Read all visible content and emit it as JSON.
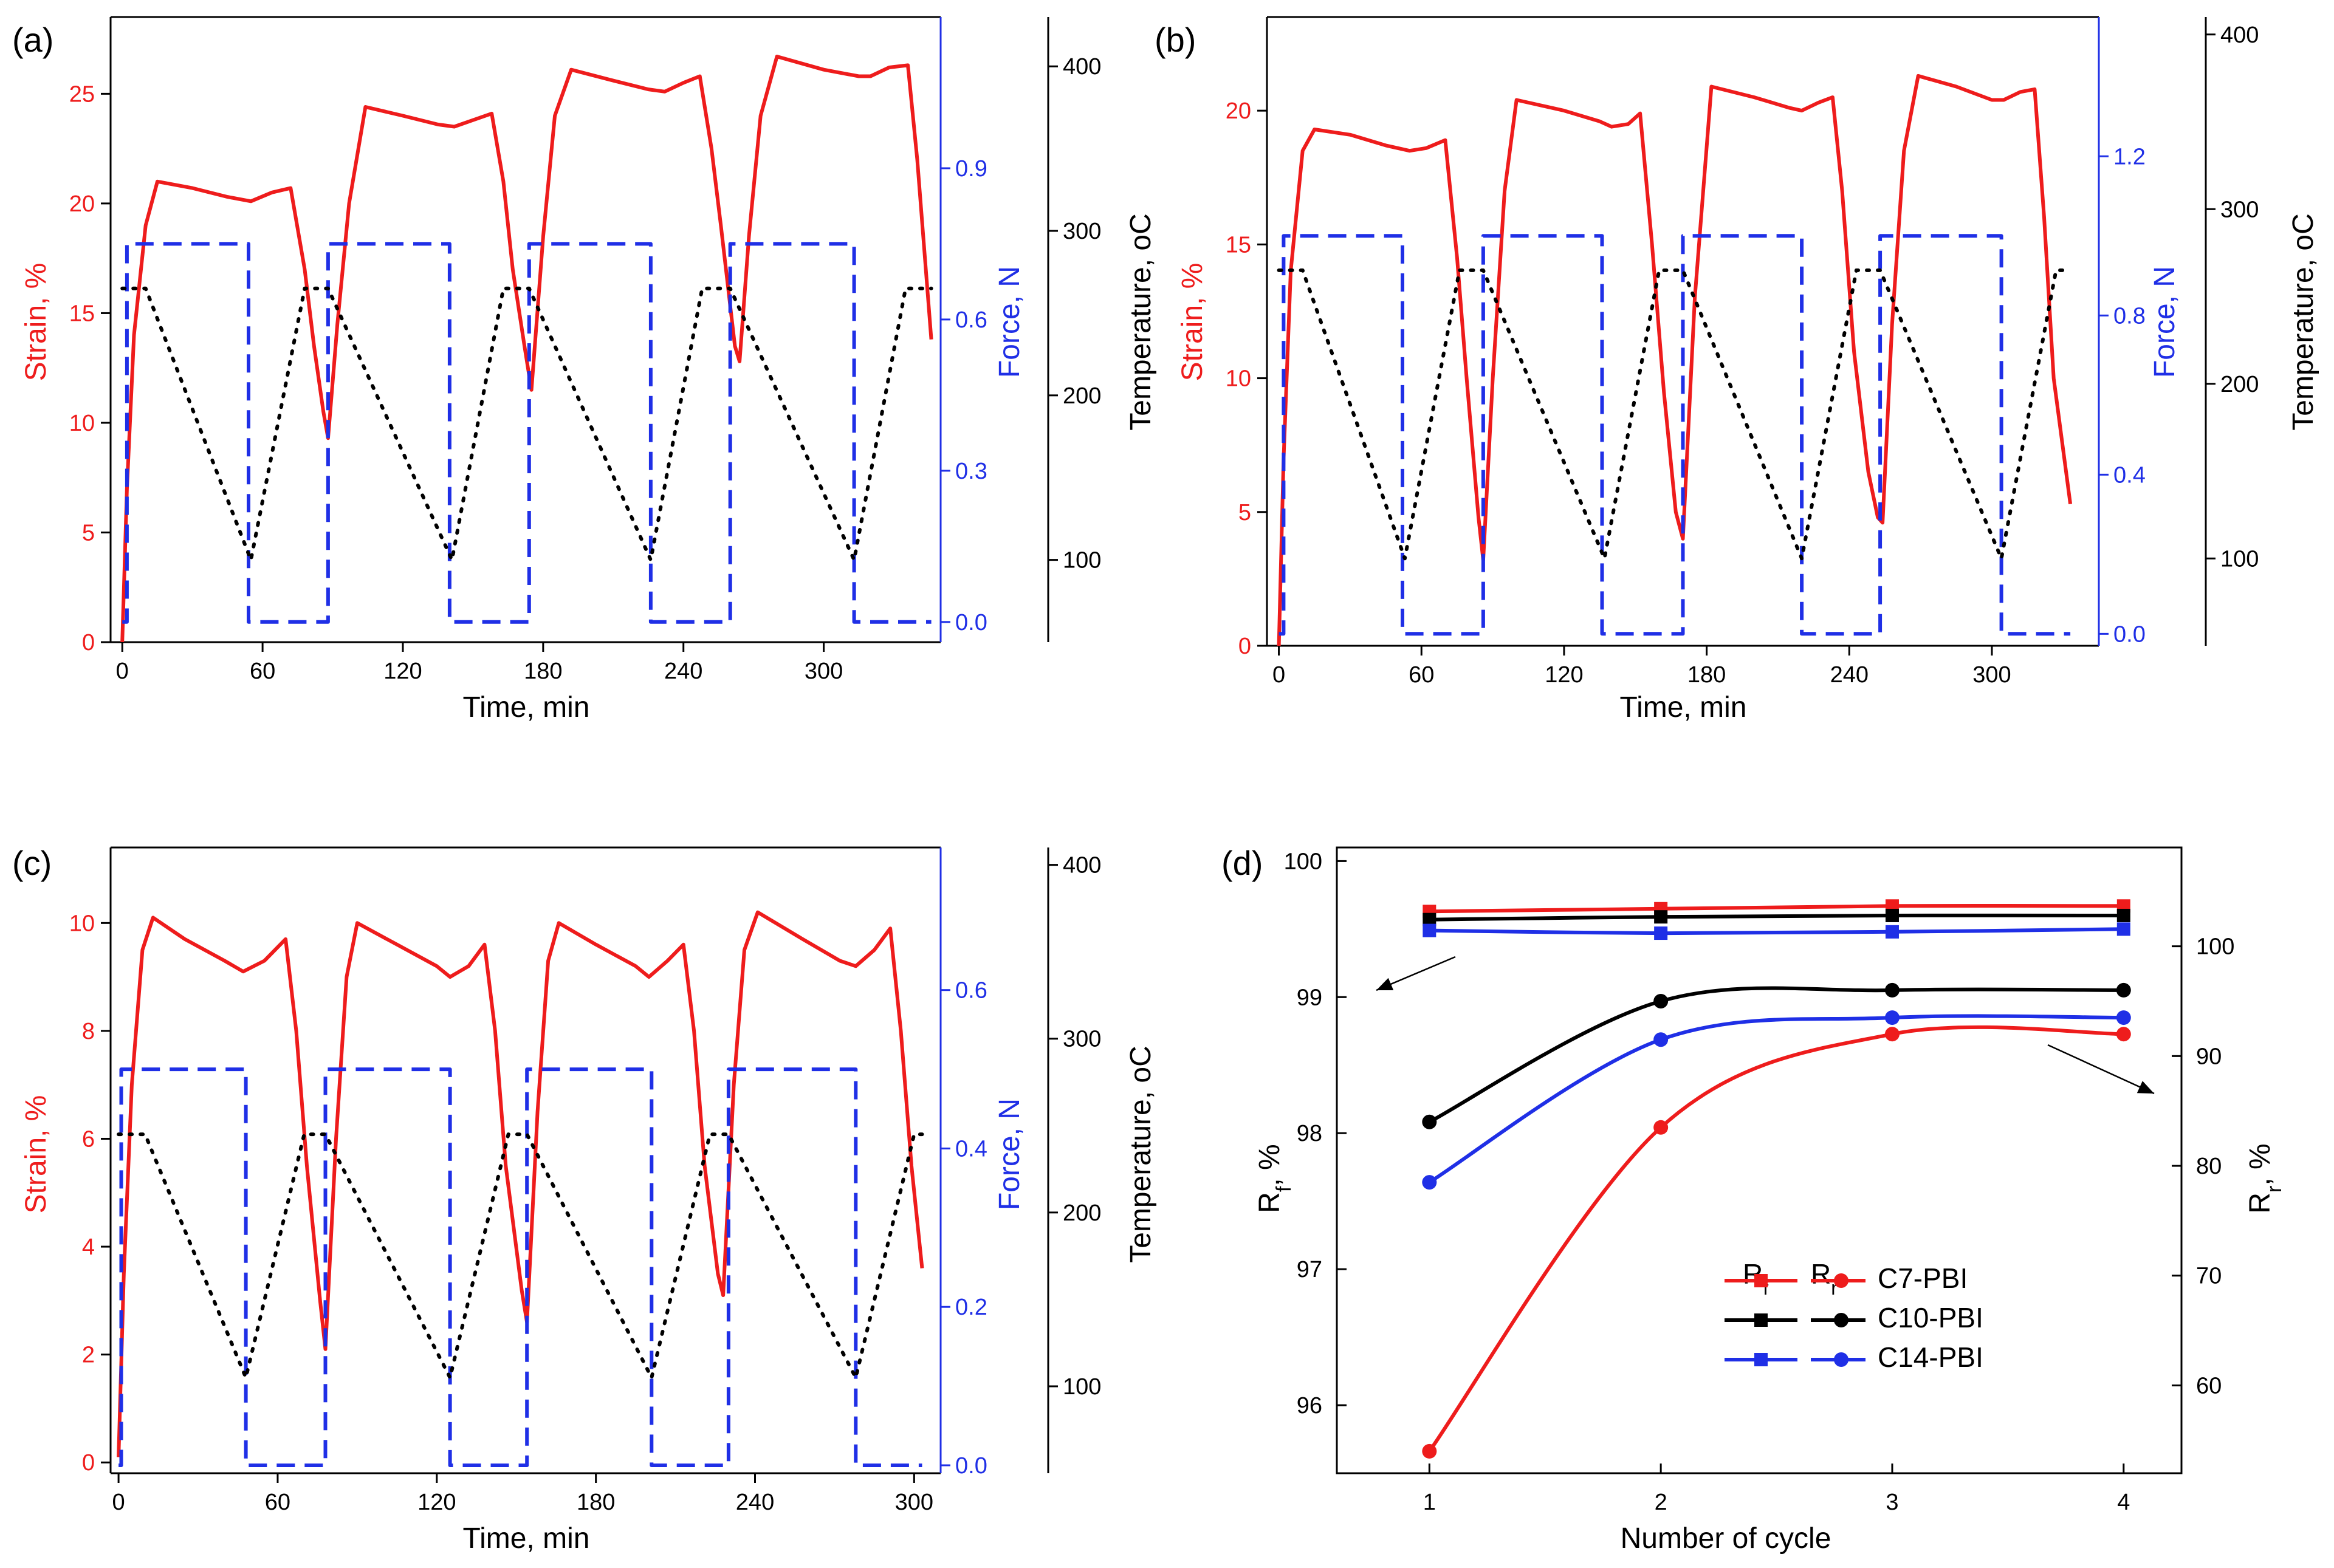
{
  "colors": {
    "strain": "#ee1c1c",
    "force": "#1f2fe6",
    "temperature": "#000000",
    "c7": "#ee1c1c",
    "c10": "#000000",
    "c14": "#1f2fe6"
  },
  "chart_data": [
    {
      "panel": "(a)",
      "type": "line",
      "xlabel": "Time, min",
      "xlim": [
        -5,
        350
      ],
      "xticks": [
        0,
        60,
        120,
        180,
        240,
        300
      ],
      "y_left": {
        "label": "Strain, %",
        "lim": [
          0,
          28.5
        ],
        "ticks": [
          0,
          5,
          10,
          15,
          20,
          25
        ]
      },
      "y_right1": {
        "label": "Force, N",
        "lim": [
          -0.04,
          1.2
        ],
        "ticks": [
          "0.0",
          "0.3",
          "0.6",
          "0.9"
        ]
      },
      "y_right2": {
        "label": "Temperature, oC",
        "lim": [
          50,
          430
        ],
        "ticks": [
          100,
          200,
          300,
          400
        ]
      },
      "series": [
        {
          "name": "Strain",
          "axis": "left",
          "style": "solid",
          "x": [
            0,
            2,
            5,
            10,
            15,
            30,
            45,
            55,
            64,
            72,
            78,
            82,
            86,
            88,
            92,
            97,
            104,
            120,
            135,
            142,
            150,
            158,
            163,
            167,
            172,
            175,
            180,
            185,
            192,
            210,
            225,
            232,
            240,
            247,
            252,
            256,
            262,
            264,
            268,
            273,
            280,
            300,
            315,
            320,
            328,
            336,
            340,
            346
          ],
          "values": [
            0,
            7,
            14,
            19,
            21,
            20.7,
            20.3,
            20.1,
            20.5,
            20.7,
            17,
            13.5,
            10.5,
            9.3,
            14.5,
            20,
            24.4,
            24,
            23.6,
            23.5,
            23.8,
            24.1,
            21,
            17,
            13.5,
            11.5,
            18.5,
            24,
            26.1,
            25.6,
            25.2,
            25.1,
            25.5,
            25.8,
            22.5,
            19,
            13.5,
            12.8,
            18.5,
            24,
            26.7,
            26.1,
            25.8,
            25.8,
            26.2,
            26.3,
            22,
            13.8
          ]
        },
        {
          "name": "Force",
          "axis": "right1",
          "style": "dash",
          "x": [
            0,
            2,
            2,
            54,
            54,
            88,
            88,
            140,
            140,
            174,
            174,
            226,
            226,
            260,
            260,
            313,
            313,
            346
          ],
          "values": [
            0,
            0,
            0.75,
            0.75,
            0,
            0,
            0.75,
            0.75,
            0,
            0,
            0.75,
            0.75,
            0,
            0,
            0.75,
            0.75,
            0,
            0
          ]
        },
        {
          "name": "Temperature",
          "axis": "right2",
          "style": "dot",
          "x": [
            0,
            10,
            55,
            78,
            88,
            141,
            163,
            174,
            226,
            248,
            260,
            313,
            335,
            346
          ],
          "values": [
            265,
            265,
            100,
            265,
            265,
            100,
            265,
            265,
            100,
            265,
            265,
            100,
            265,
            265
          ]
        }
      ]
    },
    {
      "panel": "(b)",
      "type": "line",
      "xlabel": "Time, min",
      "xlim": [
        -5,
        345
      ],
      "xticks": [
        0,
        60,
        120,
        180,
        240,
        300
      ],
      "y_left": {
        "label": "Strain, %",
        "lim": [
          0,
          23.5
        ],
        "ticks": [
          0,
          5,
          10,
          15,
          20
        ]
      },
      "y_right1": {
        "label": "Force, N",
        "lim": [
          -0.03,
          1.55
        ],
        "ticks": [
          "0.0",
          "0.4",
          "0.8",
          "1.2"
        ]
      },
      "y_right2": {
        "label": "Temperature, oC",
        "lim": [
          50,
          410
        ],
        "ticks": [
          100,
          200,
          300,
          400
        ]
      },
      "series": [
        {
          "name": "Strain",
          "axis": "left",
          "style": "solid",
          "x": [
            0,
            2,
            5,
            10,
            15,
            30,
            45,
            55,
            62,
            70,
            75,
            79,
            84,
            86,
            90,
            95,
            100,
            120,
            135,
            140,
            147,
            152,
            157,
            162,
            167,
            170,
            175,
            182,
            200,
            215,
            220,
            227,
            233,
            237,
            242,
            248,
            252,
            254,
            258,
            263,
            269,
            285,
            300,
            305,
            312,
            318,
            322,
            326,
            333
          ],
          "values": [
            0,
            7,
            14,
            18.5,
            19.3,
            19.1,
            18.7,
            18.5,
            18.6,
            18.9,
            14.5,
            10,
            4.8,
            3.2,
            10,
            17,
            20.4,
            20,
            19.6,
            19.4,
            19.5,
            19.9,
            15,
            9.5,
            5,
            4,
            13,
            20.9,
            20.5,
            20.1,
            20,
            20.3,
            20.5,
            17,
            11,
            6.5,
            4.8,
            4.6,
            12,
            18.5,
            21.3,
            20.9,
            20.4,
            20.4,
            20.7,
            20.8,
            16,
            10,
            5.3
          ]
        },
        {
          "name": "Force",
          "axis": "right1",
          "style": "dash",
          "x": [
            0,
            2,
            2,
            52,
            52,
            86,
            86,
            136,
            136,
            170,
            170,
            220,
            220,
            253,
            253,
            304,
            304,
            333
          ],
          "values": [
            0,
            0,
            1.0,
            1.0,
            0,
            0,
            1.0,
            1.0,
            0,
            0,
            1.0,
            1.0,
            0,
            0,
            1.0,
            1.0,
            0,
            0
          ]
        },
        {
          "name": "Temperature",
          "axis": "right2",
          "style": "dot",
          "x": [
            0,
            10,
            53,
            76,
            86,
            137,
            160,
            170,
            220,
            243,
            253,
            304,
            327,
            333
          ],
          "values": [
            265,
            265,
            100,
            265,
            265,
            100,
            265,
            265,
            100,
            265,
            265,
            100,
            265,
            265
          ]
        }
      ]
    },
    {
      "panel": "(c)",
      "type": "line",
      "xlabel": "Time, min",
      "xlim": [
        -3,
        310
      ],
      "xticks": [
        0,
        60,
        120,
        180,
        240,
        300
      ],
      "y_left": {
        "label": "Strain, %",
        "lim": [
          -0.2,
          11.4
        ],
        "ticks": [
          0,
          2,
          4,
          6,
          8,
          10
        ]
      },
      "y_right1": {
        "label": "Force, N",
        "lim": [
          -0.01,
          0.78
        ],
        "ticks": [
          "0.0",
          "0.2",
          "0.4",
          "0.6"
        ]
      },
      "y_right2": {
        "label": "Temperature, oC",
        "lim": [
          50,
          410
        ],
        "ticks": [
          100,
          200,
          300,
          400
        ]
      },
      "series": [
        {
          "name": "Strain",
          "axis": "left",
          "style": "solid",
          "x": [
            0,
            2,
            5,
            9,
            13,
            25,
            40,
            47,
            55,
            63,
            67,
            71,
            76,
            78,
            82,
            86,
            90,
            105,
            120,
            125,
            132,
            138,
            142,
            146,
            152,
            154,
            158,
            162,
            166,
            180,
            195,
            200,
            207,
            213,
            217,
            221,
            226,
            228,
            232,
            236,
            241,
            258,
            272,
            278,
            285,
            291,
            295,
            299,
            303
          ],
          "values": [
            0.1,
            3.5,
            7,
            9.5,
            10.1,
            9.7,
            9.3,
            9.1,
            9.3,
            9.7,
            8,
            5.5,
            3,
            2.1,
            6,
            9,
            10,
            9.6,
            9.2,
            9,
            9.2,
            9.6,
            8,
            5.5,
            3.2,
            2.6,
            6.5,
            9.3,
            10,
            9.6,
            9.2,
            9,
            9.3,
            9.6,
            8,
            5.5,
            3.5,
            3.1,
            7,
            9.5,
            10.2,
            9.7,
            9.3,
            9.2,
            9.5,
            9.9,
            8,
            5.5,
            3.6
          ]
        },
        {
          "name": "Force",
          "axis": "right1",
          "style": "dash",
          "x": [
            0,
            1,
            1,
            48,
            48,
            78,
            78,
            125,
            125,
            154,
            154,
            201,
            201,
            230,
            230,
            278,
            278,
            303
          ],
          "values": [
            0,
            0,
            0.5,
            0.5,
            0,
            0,
            0.5,
            0.5,
            0,
            0,
            0.5,
            0.5,
            0,
            0,
            0.5,
            0.5,
            0,
            0
          ]
        },
        {
          "name": "Temperature",
          "axis": "right2",
          "style": "dot",
          "x": [
            0,
            10,
            48,
            70,
            78,
            125,
            147,
            154,
            201,
            223,
            230,
            278,
            300,
            303
          ],
          "values": [
            245,
            245,
            105,
            245,
            245,
            105,
            245,
            245,
            105,
            245,
            245,
            105,
            245,
            245
          ]
        }
      ]
    },
    {
      "panel": "(d)",
      "type": "line",
      "xlabel": "Number of cycle",
      "xlim": [
        0.6,
        4.25
      ],
      "xticks": [
        1,
        2,
        3,
        4
      ],
      "y_left": {
        "label": "Rf, %",
        "lim": [
          95.5,
          100.1
        ],
        "ticks": [
          96,
          97,
          98,
          99,
          100
        ]
      },
      "y_right": {
        "label": "Rr, %",
        "lim": [
          52,
          109
        ],
        "ticks": [
          60,
          70,
          80,
          90,
          100
        ]
      },
      "legend": {
        "position": "center-bottom",
        "headers": [
          "Rf",
          "Rr"
        ],
        "entries": [
          "C7-PBI",
          "C10-PBI",
          "C14-PBI"
        ]
      },
      "series": [
        {
          "name": "C7-PBI Rf",
          "axis": "left",
          "marker": "square",
          "x": [
            1,
            2,
            3,
            4
          ],
          "values": [
            99.63,
            99.65,
            99.67,
            99.67
          ]
        },
        {
          "name": "C10-PBI Rf",
          "axis": "left",
          "marker": "square",
          "x": [
            1,
            2,
            3,
            4
          ],
          "values": [
            99.57,
            99.59,
            99.6,
            99.6
          ]
        },
        {
          "name": "C14-PBI Rf",
          "axis": "left",
          "marker": "square",
          "x": [
            1,
            2,
            3,
            4
          ],
          "values": [
            99.49,
            99.47,
            99.48,
            99.5
          ]
        },
        {
          "name": "C7-PBI Rr",
          "axis": "right",
          "marker": "circle",
          "x": [
            1,
            2,
            3,
            4
          ],
          "values": [
            54,
            83.5,
            92,
            92
          ]
        },
        {
          "name": "C10-PBI Rr",
          "axis": "right",
          "marker": "circle",
          "x": [
            1,
            2,
            3,
            4
          ],
          "values": [
            84,
            95,
            96,
            96
          ]
        },
        {
          "name": "C14-PBI Rr",
          "axis": "right",
          "marker": "circle",
          "x": [
            1,
            2,
            3,
            4
          ],
          "values": [
            78.5,
            91.5,
            93.5,
            93.5
          ]
        }
      ]
    }
  ]
}
